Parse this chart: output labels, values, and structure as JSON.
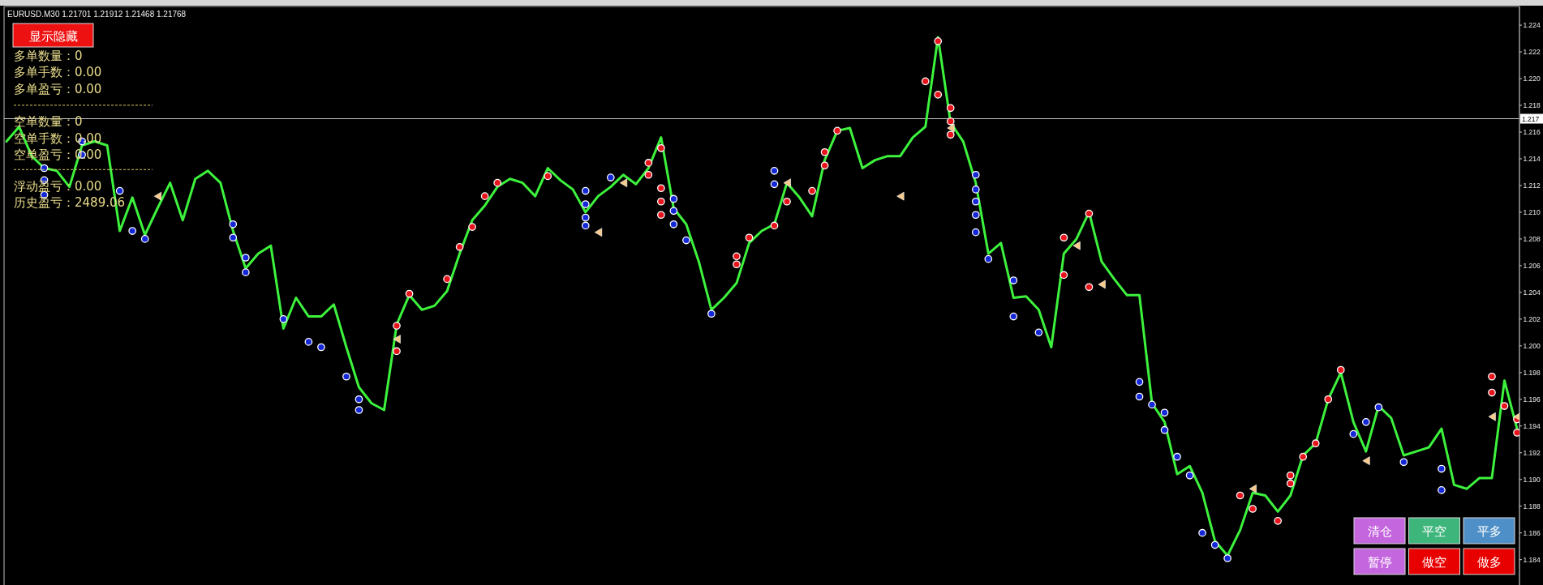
{
  "chart_data": {
    "type": "line",
    "title": "EURUSD.M30 1.21701 1.21912 1.21468 1.21768",
    "categories": [
      null,
      null,
      null,
      null,
      null,
      null,
      null,
      null,
      null,
      null,
      null,
      null,
      null,
      null,
      null,
      null,
      null,
      null,
      null,
      null,
      null,
      null,
      null,
      null,
      null,
      null,
      null,
      null,
      null,
      null,
      null,
      null,
      null,
      null,
      null,
      null,
      null,
      null,
      null,
      null,
      null,
      null,
      null,
      null,
      null,
      null,
      null,
      null,
      null,
      null,
      null,
      null,
      null,
      null,
      null,
      null,
      null,
      null,
      null,
      null,
      null,
      null,
      null,
      null,
      null,
      null,
      null,
      null,
      null,
      null,
      null,
      null,
      null,
      null,
      null,
      null,
      null,
      null,
      null,
      null,
      null,
      null,
      null,
      null,
      null,
      null,
      null,
      null,
      null,
      null,
      null,
      null,
      null,
      null,
      null,
      null,
      null,
      null,
      null,
      null,
      null,
      null,
      null,
      null,
      null,
      null,
      null,
      null,
      null,
      null,
      null,
      null,
      null,
      null,
      null,
      null,
      null,
      null,
      null,
      null,
      null
    ],
    "ylim": [
      1.1821,
      1.2254
    ],
    "yticks": [
      {
        "value": 1.184,
        "label": "1.184"
      },
      {
        "value": 1.186,
        "label": "1.186"
      },
      {
        "value": 1.188,
        "label": "1.188"
      },
      {
        "value": 1.19,
        "label": "1.190"
      },
      {
        "value": 1.192,
        "label": "1.192"
      },
      {
        "value": 1.194,
        "label": "1.194"
      },
      {
        "value": 1.196,
        "label": "1.196"
      },
      {
        "value": 1.198,
        "label": "1.198"
      },
      {
        "value": 1.2,
        "label": "1.200"
      },
      {
        "value": 1.202,
        "label": "1.202"
      },
      {
        "value": 1.204,
        "label": "1.204"
      },
      {
        "value": 1.206,
        "label": "1.206"
      },
      {
        "value": 1.208,
        "label": "1.208"
      },
      {
        "value": 1.21,
        "label": "1.210"
      },
      {
        "value": 1.212,
        "label": "1.212"
      },
      {
        "value": 1.214,
        "label": "1.214"
      },
      {
        "value": 1.216,
        "label": "1.216"
      },
      {
        "value": 1.218,
        "label": "1.218"
      },
      {
        "value": 1.22,
        "label": "1.220"
      },
      {
        "value": 1.222,
        "label": "1.222"
      },
      {
        "value": 1.224,
        "label": "1.224"
      }
    ],
    "ref_lines": [
      {
        "axis": "y",
        "value": 1.217,
        "label": "1.217",
        "color": "#c8c8c8"
      }
    ],
    "series": [
      {
        "color": "#3df23d",
        "values": [
          1.2153,
          1.2164,
          1.2142,
          1.2133,
          1.2131,
          1.2119,
          1.215,
          1.2153,
          1.215,
          1.2086,
          1.2111,
          1.2083,
          1.2103,
          1.2122,
          1.2094,
          1.2125,
          1.2131,
          1.2122,
          1.2086,
          1.2058,
          1.2069,
          1.2075,
          1.2013,
          1.2036,
          1.2022,
          1.2022,
          1.2031,
          1.1999,
          1.1969,
          1.1957,
          1.1952,
          1.2016,
          1.2038,
          1.2027,
          1.203,
          1.2041,
          1.2069,
          1.2094,
          1.2105,
          1.2119,
          1.2125,
          1.2122,
          1.2112,
          1.2133,
          1.2124,
          1.2117,
          1.21,
          1.2112,
          1.2119,
          1.2128,
          1.2121,
          1.2133,
          1.2156,
          1.2103,
          1.2091,
          1.2063,
          1.2027,
          1.2036,
          1.2047,
          1.2077,
          1.2086,
          1.2091,
          1.2122,
          1.2111,
          1.2097,
          1.2139,
          1.2161,
          1.2163,
          1.2133,
          1.2139,
          1.2142,
          1.2142,
          1.2156,
          1.2164,
          1.2231,
          1.2167,
          1.2153,
          1.2122,
          1.2069,
          1.2077,
          1.2036,
          1.2037,
          1.2027,
          1.1999,
          1.2069,
          1.208,
          1.21,
          1.2063,
          1.205,
          1.2038,
          1.2038,
          1.1957,
          1.1943,
          1.1904,
          1.191,
          1.189,
          1.1854,
          1.1843,
          1.1862,
          1.189,
          1.1888,
          1.1876,
          1.1888,
          1.1918,
          1.1927,
          1.196,
          1.198,
          1.1943,
          1.1921,
          1.1955,
          1.1946,
          1.1918,
          1.1921,
          1.1924,
          1.1938,
          1.1896,
          1.1893,
          1.1901,
          1.1901,
          1.1974,
          1.1938
        ]
      },
      {
        "type": "scatter",
        "color": "#e8141c",
        "marker": "circle",
        "values": [
          null,
          null,
          null,
          null,
          null,
          null,
          null,
          null,
          null,
          null,
          null,
          null,
          null,
          null,
          null,
          null,
          null,
          null,
          null,
          null,
          null,
          null,
          null,
          null,
          null,
          null,
          null,
          null,
          null,
          null,
          null,
          1.1996,
          1.2039,
          null,
          null,
          1.205,
          1.2074,
          1.2089,
          1.2112,
          1.2122,
          null,
          null,
          null,
          1.2127,
          null,
          null,
          null,
          null,
          null,
          null,
          null,
          1.2137,
          1.2148,
          null,
          null,
          null,
          null,
          null,
          1.2061,
          1.2081,
          null,
          1.209,
          1.2108,
          null,
          1.2116,
          1.2135,
          1.2161,
          null,
          null,
          null,
          null,
          null,
          null,
          1.2198,
          1.2228,
          1.2178,
          null,
          null,
          null,
          null,
          null,
          null,
          null,
          null,
          1.2081,
          null,
          1.2099,
          null,
          null,
          null,
          null,
          null,
          null,
          null,
          null,
          null,
          null,
          null,
          1.1888,
          1.1878,
          null,
          1.1869,
          1.1903,
          1.1917,
          1.1927,
          1.196,
          1.1982,
          null,
          null,
          null,
          null,
          null,
          null,
          null,
          null,
          null,
          null,
          null,
          1.1965,
          1.1955,
          1.1945
        ]
      },
      {
        "type": "scatter",
        "color": "#e8141c",
        "marker": "circle",
        "values": [
          null,
          null,
          null,
          null,
          null,
          null,
          null,
          null,
          null,
          null,
          null,
          null,
          null,
          null,
          null,
          null,
          null,
          null,
          null,
          null,
          null,
          null,
          null,
          null,
          null,
          null,
          null,
          null,
          null,
          null,
          null,
          1.2015,
          null,
          null,
          null,
          null,
          null,
          null,
          null,
          null,
          null,
          null,
          null,
          null,
          null,
          null,
          null,
          null,
          null,
          null,
          null,
          1.2128,
          1.2118,
          null,
          null,
          null,
          null,
          null,
          1.2067,
          null,
          null,
          null,
          null,
          null,
          null,
          1.2145,
          null,
          null,
          null,
          null,
          null,
          null,
          null,
          null,
          1.2188,
          1.2168,
          null,
          null,
          null,
          null,
          null,
          null,
          null,
          null,
          1.2053,
          null,
          1.2044,
          null,
          null,
          null,
          null,
          null,
          null,
          null,
          null,
          null,
          null,
          null,
          null,
          null,
          null,
          null,
          1.1897,
          null,
          null,
          null,
          null,
          null,
          null,
          null,
          null,
          null,
          null,
          null,
          null,
          null,
          null,
          null,
          1.1977,
          null,
          1.1935
        ]
      },
      {
        "type": "scatter",
        "color": "#e8141c",
        "marker": "circle",
        "values": [
          null,
          null,
          null,
          null,
          null,
          null,
          null,
          null,
          null,
          null,
          null,
          null,
          null,
          null,
          null,
          null,
          null,
          null,
          null,
          null,
          null,
          null,
          null,
          null,
          null,
          null,
          null,
          null,
          null,
          null,
          null,
          null,
          null,
          null,
          null,
          null,
          null,
          null,
          null,
          null,
          null,
          null,
          null,
          null,
          null,
          null,
          null,
          null,
          null,
          null,
          null,
          null,
          1.2108,
          null,
          null,
          null,
          null,
          null,
          null,
          null,
          null,
          null,
          null,
          null,
          null,
          null,
          null,
          null,
          null,
          null,
          null,
          null,
          null,
          null,
          null,
          1.2158,
          null,
          null,
          null,
          null,
          null,
          null,
          null,
          null,
          null,
          null,
          null,
          null,
          null,
          null,
          null,
          null,
          null,
          null,
          null,
          null,
          null,
          null,
          null,
          null,
          null,
          null,
          null,
          null,
          null,
          null,
          null,
          null,
          null,
          null,
          null,
          null,
          null,
          null,
          null,
          null,
          null,
          null,
          null,
          null,
          null
        ]
      },
      {
        "type": "scatter",
        "color": "#e8141c",
        "marker": "circle",
        "values": [
          null,
          null,
          null,
          null,
          null,
          null,
          null,
          null,
          null,
          null,
          null,
          null,
          null,
          null,
          null,
          null,
          null,
          null,
          null,
          null,
          null,
          null,
          null,
          null,
          null,
          null,
          null,
          null,
          null,
          null,
          null,
          null,
          null,
          null,
          null,
          null,
          null,
          null,
          null,
          null,
          null,
          null,
          null,
          null,
          null,
          null,
          null,
          null,
          null,
          null,
          null,
          null,
          1.2098,
          null,
          null,
          null,
          null,
          null,
          null,
          null,
          null,
          null,
          null,
          null,
          null,
          null,
          null,
          null,
          null,
          null,
          null,
          null,
          null,
          null,
          null,
          null,
          null,
          null,
          null,
          null,
          null,
          null,
          null,
          null,
          null,
          null,
          null,
          null,
          null,
          null,
          null,
          null,
          null,
          null,
          null,
          null,
          null,
          null,
          null,
          null,
          null,
          null,
          null,
          null,
          null,
          null,
          null,
          null,
          null,
          null,
          null,
          null,
          null,
          null,
          null,
          null,
          null,
          null,
          null,
          null,
          null
        ]
      },
      {
        "type": "scatter",
        "color": "#1428d8",
        "marker": "circle",
        "values": [
          null,
          null,
          null,
          1.2133,
          null,
          null,
          1.2153,
          null,
          null,
          1.2116,
          1.2086,
          1.208,
          null,
          null,
          null,
          null,
          null,
          null,
          1.2091,
          1.2066,
          null,
          null,
          1.202,
          null,
          1.2003,
          1.1999,
          null,
          1.1977,
          1.196,
          null,
          null,
          null,
          null,
          null,
          null,
          null,
          null,
          null,
          null,
          null,
          null,
          null,
          null,
          null,
          null,
          null,
          1.2106,
          null,
          1.2126,
          null,
          null,
          null,
          null,
          1.211,
          1.2079,
          null,
          1.2024,
          null,
          null,
          null,
          null,
          1.2131,
          null,
          null,
          null,
          null,
          null,
          null,
          null,
          null,
          null,
          null,
          null,
          null,
          null,
          null,
          null,
          1.2128,
          1.2065,
          null,
          1.2049,
          null,
          1.201,
          null,
          null,
          null,
          null,
          null,
          null,
          null,
          1.1973,
          1.1956,
          1.195,
          1.1917,
          1.1903,
          1.186,
          1.1851,
          1.1841,
          null,
          null,
          null,
          null,
          null,
          null,
          null,
          null,
          null,
          1.1934,
          1.1943,
          1.1954,
          null,
          1.1913,
          null,
          null,
          1.1908,
          null,
          null,
          null,
          null,
          null,
          null
        ]
      },
      {
        "type": "scatter",
        "color": "#1428d8",
        "marker": "circle",
        "values": [
          null,
          null,
          null,
          1.2124,
          null,
          null,
          1.2143,
          null,
          null,
          null,
          null,
          null,
          null,
          null,
          null,
          null,
          null,
          null,
          1.2081,
          1.2055,
          null,
          null,
          null,
          null,
          null,
          null,
          null,
          null,
          1.1952,
          null,
          null,
          null,
          null,
          null,
          null,
          null,
          null,
          null,
          null,
          null,
          null,
          null,
          null,
          null,
          null,
          null,
          1.2096,
          null,
          null,
          null,
          null,
          null,
          null,
          1.2101,
          null,
          null,
          null,
          null,
          null,
          null,
          null,
          1.2121,
          null,
          null,
          null,
          null,
          null,
          null,
          null,
          null,
          null,
          null,
          null,
          null,
          null,
          null,
          null,
          1.2117,
          null,
          null,
          1.2022,
          null,
          null,
          null,
          null,
          null,
          null,
          null,
          null,
          null,
          1.1962,
          null,
          1.1937,
          null,
          null,
          null,
          null,
          null,
          null,
          null,
          null,
          null,
          null,
          null,
          null,
          null,
          null,
          null,
          null,
          null,
          null,
          null,
          null,
          null,
          1.1892,
          null,
          null,
          null,
          null,
          null,
          null
        ]
      },
      {
        "type": "scatter",
        "color": "#1428d8",
        "marker": "circle",
        "values": [
          null,
          null,
          null,
          1.2113,
          null,
          null,
          null,
          null,
          null,
          null,
          null,
          null,
          null,
          null,
          null,
          null,
          null,
          null,
          null,
          null,
          null,
          null,
          null,
          null,
          null,
          null,
          null,
          null,
          null,
          null,
          null,
          null,
          null,
          null,
          null,
          null,
          null,
          null,
          null,
          null,
          null,
          null,
          null,
          null,
          null,
          null,
          1.209,
          null,
          null,
          null,
          null,
          null,
          null,
          1.2091,
          null,
          null,
          null,
          null,
          null,
          null,
          null,
          null,
          null,
          null,
          null,
          null,
          null,
          null,
          null,
          null,
          null,
          null,
          null,
          null,
          null,
          null,
          null,
          1.2108,
          null,
          null,
          null,
          null,
          null,
          null,
          null,
          null,
          null,
          null,
          null,
          null,
          null,
          null,
          null,
          null,
          null,
          null,
          null,
          null,
          null,
          null,
          null,
          null,
          null,
          null,
          null,
          null,
          null,
          null,
          null,
          null,
          null,
          null,
          null,
          null,
          null,
          null,
          null,
          null,
          null,
          null,
          null
        ]
      },
      {
        "type": "scatter",
        "color": "#1428d8",
        "marker": "circle",
        "values": [
          null,
          null,
          null,
          null,
          null,
          null,
          null,
          null,
          null,
          null,
          null,
          null,
          null,
          null,
          null,
          null,
          null,
          null,
          null,
          null,
          null,
          null,
          null,
          null,
          null,
          null,
          null,
          null,
          null,
          null,
          null,
          null,
          null,
          null,
          null,
          null,
          null,
          null,
          null,
          null,
          null,
          null,
          null,
          null,
          null,
          null,
          1.2116,
          null,
          null,
          null,
          null,
          null,
          null,
          null,
          null,
          null,
          null,
          null,
          null,
          null,
          null,
          null,
          null,
          null,
          null,
          null,
          null,
          null,
          null,
          null,
          null,
          null,
          null,
          null,
          null,
          null,
          null,
          1.2098,
          null,
          null,
          null,
          null,
          null,
          null,
          null,
          null,
          null,
          null,
          null,
          null,
          null,
          null,
          null,
          null,
          null,
          null,
          null,
          null,
          null,
          null,
          null,
          null,
          null,
          null,
          null,
          null,
          null,
          null,
          null,
          null,
          null,
          null,
          null,
          null,
          null,
          null,
          null,
          null,
          null,
          null,
          null
        ]
      },
      {
        "type": "scatter",
        "color": "#1428d8",
        "marker": "circle",
        "values": [
          null,
          null,
          null,
          null,
          null,
          null,
          null,
          null,
          null,
          null,
          null,
          null,
          null,
          null,
          null,
          null,
          null,
          null,
          null,
          null,
          null,
          null,
          null,
          null,
          null,
          null,
          null,
          null,
          null,
          null,
          null,
          null,
          null,
          null,
          null,
          null,
          null,
          null,
          null,
          null,
          null,
          null,
          null,
          null,
          null,
          null,
          null,
          null,
          null,
          null,
          null,
          null,
          null,
          null,
          null,
          null,
          null,
          null,
          null,
          null,
          null,
          null,
          null,
          null,
          null,
          null,
          null,
          null,
          null,
          null,
          null,
          null,
          null,
          null,
          null,
          null,
          null,
          1.2085,
          null,
          null,
          null,
          null,
          null,
          null,
          null,
          null,
          null,
          null,
          null,
          null,
          null,
          null,
          null,
          null,
          null,
          null,
          null,
          null,
          null,
          null,
          null,
          null,
          null,
          null,
          null,
          null,
          null,
          null,
          null,
          null,
          null,
          null,
          null,
          null,
          null,
          null,
          null,
          null,
          null,
          null,
          null
        ]
      },
      {
        "type": "scatter",
        "color": "#f7c98b",
        "marker": "triangle",
        "values": [
          null,
          null,
          null,
          null,
          null,
          null,
          null,
          null,
          null,
          null,
          null,
          null,
          1.2112,
          null,
          null,
          null,
          null,
          null,
          null,
          null,
          null,
          null,
          null,
          null,
          null,
          null,
          null,
          null,
          null,
          null,
          null,
          1.2005,
          null,
          null,
          null,
          null,
          null,
          null,
          null,
          null,
          null,
          null,
          null,
          null,
          null,
          null,
          null,
          1.2085,
          null,
          1.2122,
          null,
          null,
          null,
          null,
          null,
          null,
          null,
          null,
          null,
          null,
          null,
          null,
          1.2122,
          null,
          null,
          null,
          null,
          null,
          null,
          null,
          null,
          1.2112,
          null,
          null,
          null,
          1.2163,
          null,
          null,
          null,
          null,
          null,
          null,
          null,
          null,
          null,
          1.2075,
          null,
          1.2046,
          null,
          null,
          null,
          null,
          null,
          null,
          null,
          null,
          null,
          null,
          null,
          1.1893,
          null,
          null,
          null,
          null,
          null,
          null,
          null,
          null,
          1.1914,
          null,
          null,
          null,
          null,
          null,
          null,
          null,
          null,
          null,
          1.1947,
          null,
          1.1947
        ]
      }
    ],
    "annotations": [
      "显示隐藏",
      "多单数量：0",
      "多单手数：0.00",
      "多单盈亏：0.00",
      "空单数量：0",
      "空单手数：0.00",
      "空单盈亏：0.00",
      "浮动盈亏：0.00",
      "历史盈亏：2489.06",
      "清仓",
      "平空",
      "平多",
      "暂停",
      "做空",
      "做多"
    ]
  }
}
